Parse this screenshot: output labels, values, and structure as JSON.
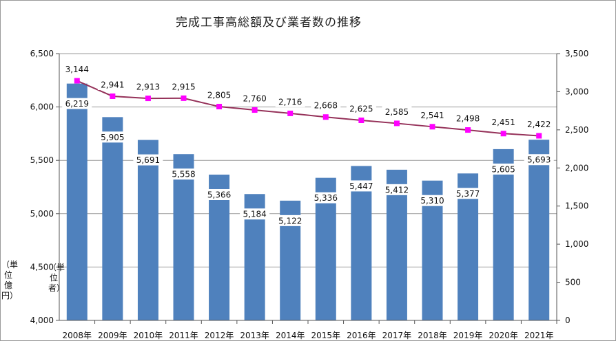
{
  "chart_data": {
    "type": "bar",
    "title": "完成工事高総額及び業者数の推移",
    "categories": [
      "2008年",
      "2009年",
      "2010年",
      "2011年",
      "2012年",
      "2013年",
      "2014年",
      "2015年",
      "2016年",
      "2017年",
      "2018年",
      "2019年",
      "2020年",
      "2021年"
    ],
    "series": [
      {
        "name": "",
        "type": "bar",
        "axis": "left",
        "values": [
          6219,
          5905,
          5691,
          5558,
          5366,
          5184,
          5122,
          5336,
          5447,
          5412,
          5310,
          5377,
          5605,
          5693
        ],
        "labels": [
          "6,219",
          "5,905",
          "5,691",
          "5,558",
          "5,366",
          "5,184",
          "5,122",
          "5,336",
          "5,447",
          "5,412",
          "5,310",
          "5,377",
          "5,605",
          "5,693"
        ],
        "color": "#4F81BD"
      },
      {
        "name": "",
        "type": "line",
        "axis": "right",
        "values": [
          3144,
          2941,
          2913,
          2915,
          2805,
          2760,
          2716,
          2668,
          2625,
          2585,
          2541,
          2498,
          2451,
          2422
        ],
        "labels": [
          "3,144",
          "2,941",
          "2,913",
          "2,915",
          "2,805",
          "2,760",
          "2,716",
          "2,668",
          "2,625",
          "2,585",
          "2,541",
          "2,498",
          "2,451",
          "2,422"
        ],
        "line_color": "#953159",
        "marker_color": "#FF00FF"
      }
    ],
    "y_left": {
      "min": 4000,
      "max": 6500,
      "ticks": [
        4000,
        4500,
        5000,
        5500,
        6000,
        6500
      ],
      "tick_labels": [
        "4,000",
        "4,500",
        "5,000",
        "5,500",
        "6,000",
        "6,500"
      ],
      "unit_label": "（単位　億円）"
    },
    "y_right": {
      "min": 0,
      "max": 3500,
      "ticks": [
        0,
        500,
        1000,
        1500,
        2000,
        2500,
        3000,
        3500
      ],
      "tick_labels": [
        "0",
        "500",
        "1,000",
        "1,500",
        "2,000",
        "2,500",
        "3,000",
        "3,500"
      ],
      "unit_label": "（単位　者）"
    },
    "grid": true,
    "legend": "none"
  },
  "colors": {
    "bar": "#4F81BD",
    "line": "#953159",
    "marker": "#FF00FF",
    "grid": "#9A9A9A"
  }
}
